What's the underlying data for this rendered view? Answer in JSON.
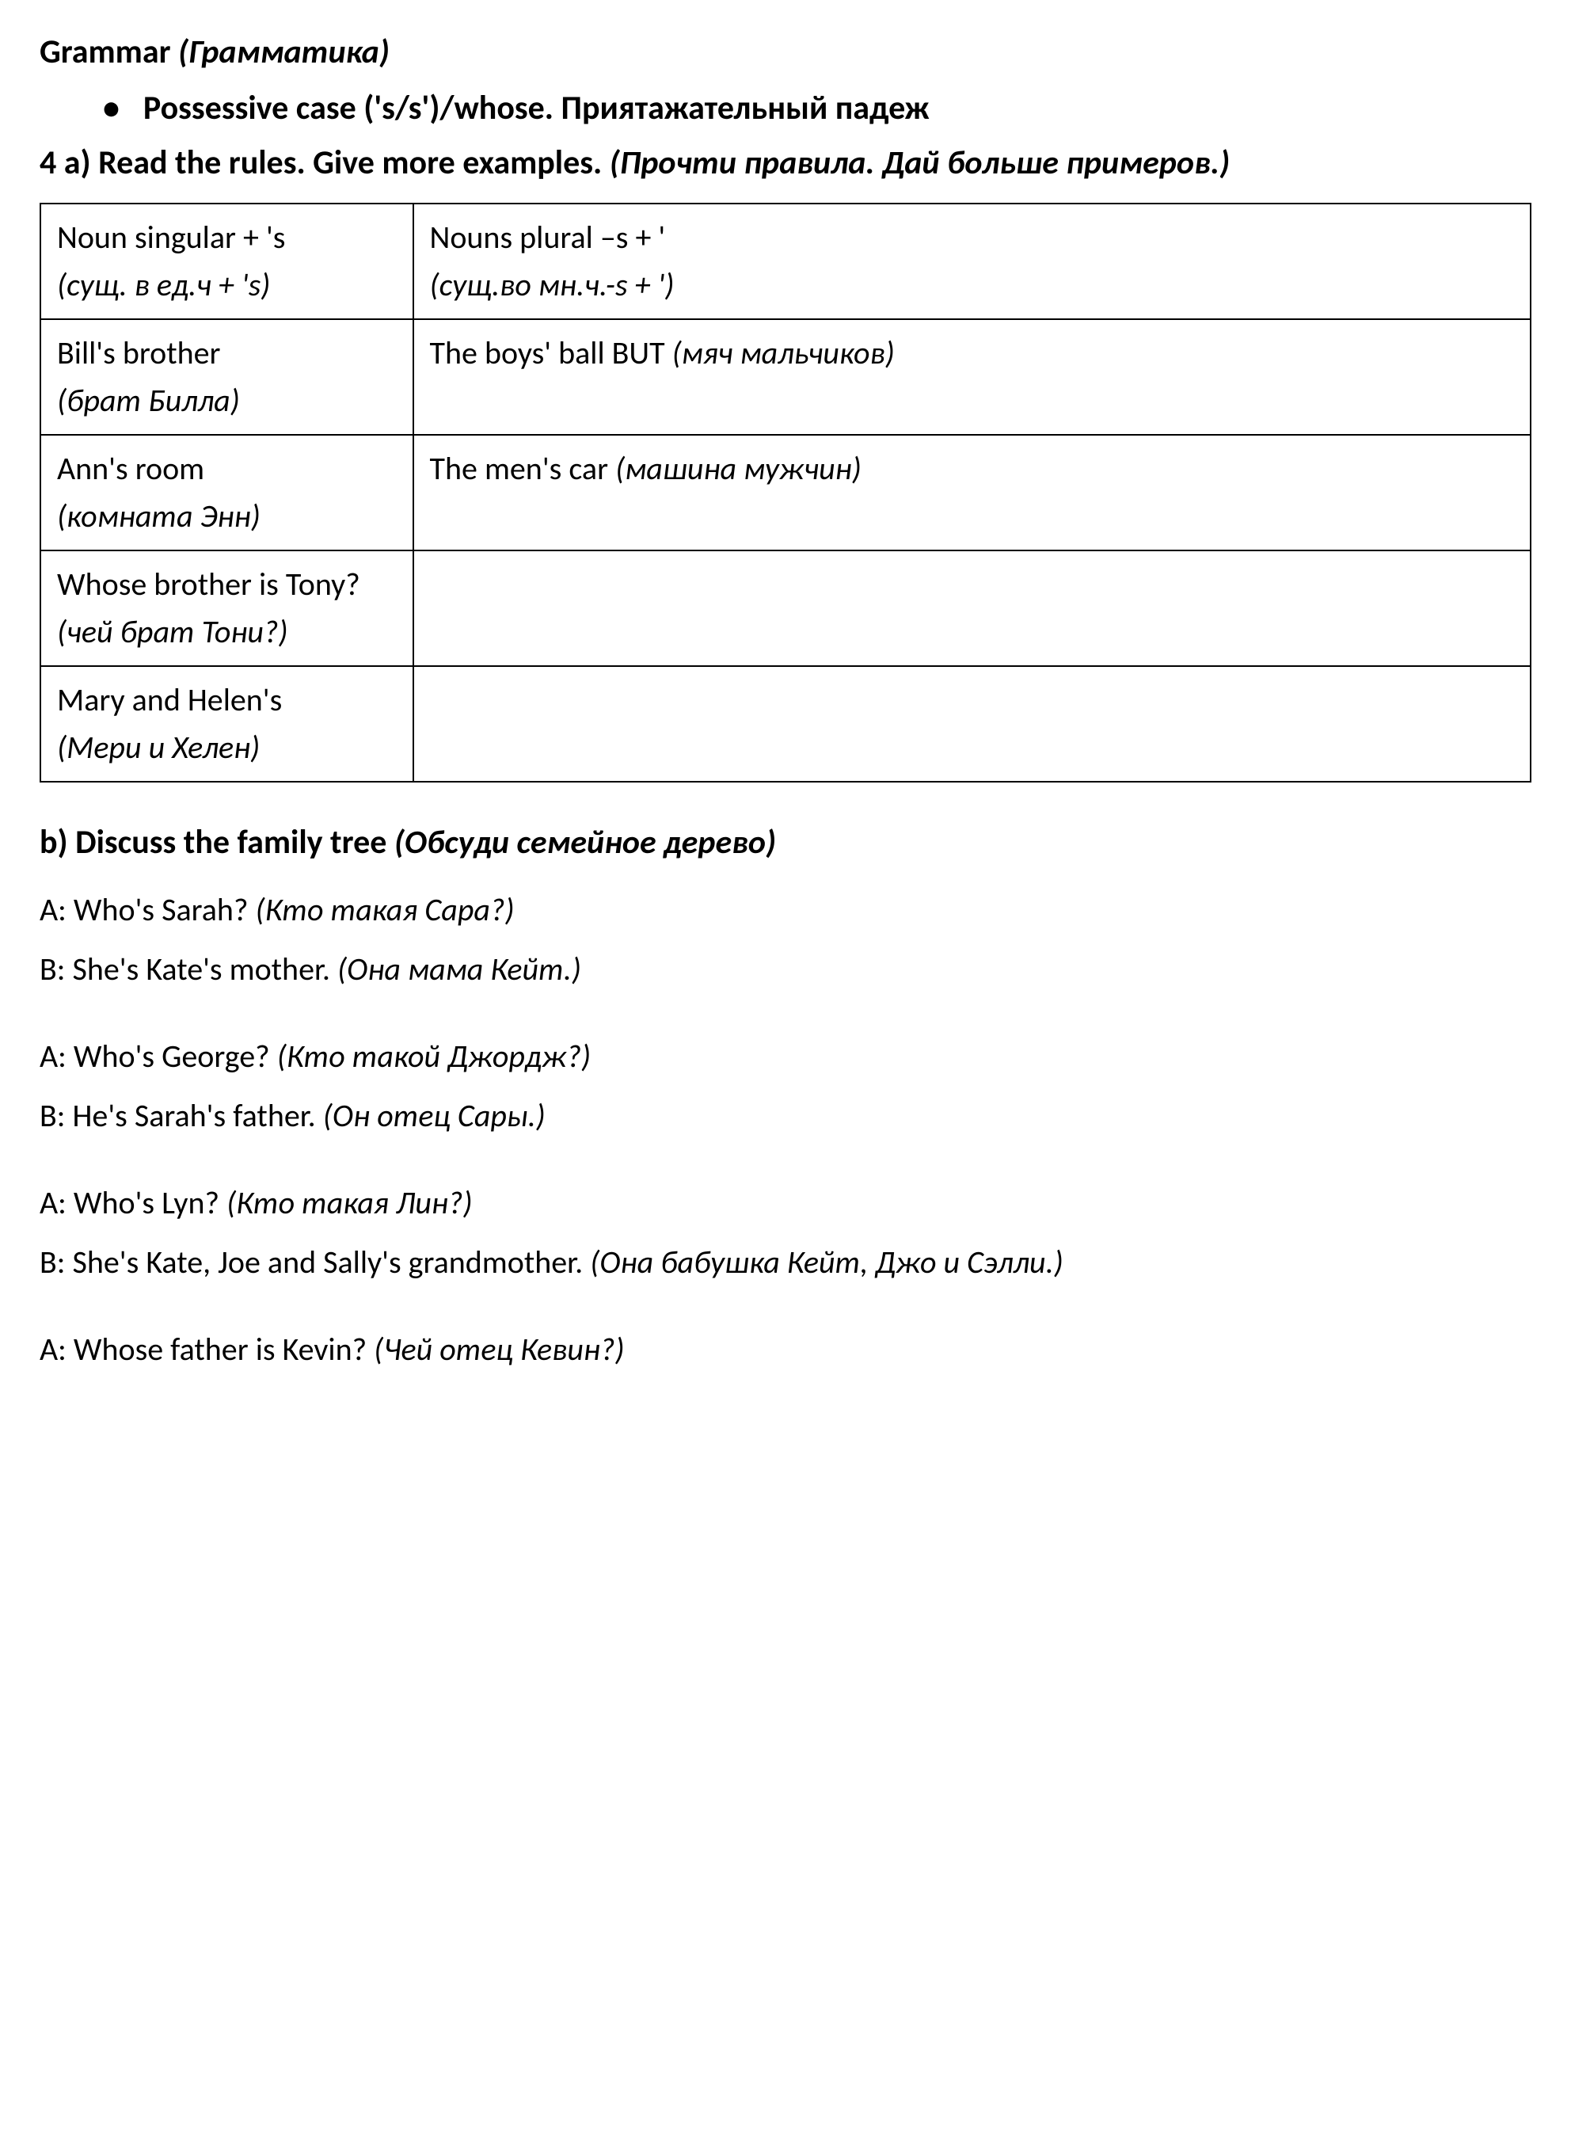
{
  "document": {
    "title_en": "Grammar",
    "title_ru": "(Грамматика)",
    "bullet": {
      "text_en": "Possessive case ('s/s')/whose.",
      "text_ru": "Приятажательный падеж"
    },
    "exercise_4a": {
      "label": "4 a) Read the rules. Give more examples.",
      "label_ru": "(Прочти правила. Дай больше примеров.)"
    },
    "table": {
      "row1": {
        "col1_en": "Noun singular + 's",
        "col1_ru": "(сущ. в ед.ч + 's)",
        "col2_en": "Nouns plural –s + '",
        "col2_ru": "(сущ.во мн.ч.-s + ')"
      },
      "row2": {
        "col1_en": "Bill's brother",
        "col1_ru": "(брат Билла)",
        "col2_en": "The boys' ball BUT",
        "col2_ru": "(мяч мальчиков)"
      },
      "row3": {
        "col1_en": "Ann's room",
        "col1_ru": "(комната Энн)",
        "col2_en": "The men's car",
        "col2_ru": "(машина мужчин)"
      },
      "row4": {
        "col1_en": "Whose brother is Tony?",
        "col1_ru": "(чей брат Тони?)",
        "col2": ""
      },
      "row5": {
        "col1_en": "Mary and Helen's",
        "col1_ru": "(Мери и Хелен)",
        "col2": ""
      }
    },
    "exercise_b": {
      "label": "b) Discuss the family tree",
      "label_ru": "(Обсуди семейное дерево)"
    },
    "dialogues": {
      "d1": {
        "a_en": "A: Who's Sarah?",
        "a_ru": "(Кто такая Сара?)",
        "b_en": "B: She's Kate's mother.",
        "b_ru": "(Она мама Кейт.)"
      },
      "d2": {
        "a_en": "A: Who's George?",
        "a_ru": "(Кто такой Джордж?)",
        "b_en": "B: He's Sarah's father.",
        "b_ru": "(Он отец Сары.)"
      },
      "d3": {
        "a_en": "A: Who's Lyn?",
        "a_ru": "(Кто такая Лин?)",
        "b_en": "B: She's Kate, Joe and Sally's grandmother.",
        "b_ru": "(Она бабушка Кейт, Джо и Сэлли.)"
      },
      "d4": {
        "a_en": "A: Whose father is Kevin?",
        "a_ru": "(Чей отец Кевин?)"
      }
    }
  },
  "styles": {
    "text_color": "#000000",
    "background_color": "#ffffff",
    "border_color": "#000000",
    "title_fontsize": 42,
    "body_fontsize": 40
  }
}
